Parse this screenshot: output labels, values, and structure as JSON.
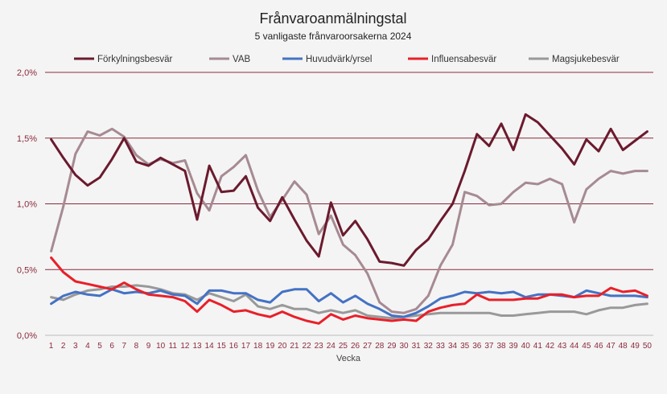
{
  "chart_data": {
    "type": "line",
    "title": "Frånvaroanmälningstal",
    "subtitle": "5 vanligaste frånvaroorsakerna 2024",
    "xlabel": "Vecka",
    "ylabel": "",
    "ylim": [
      0,
      2.0
    ],
    "ytick_values": [
      0,
      0.5,
      1.0,
      1.5,
      2.0
    ],
    "ytick_labels": [
      "0,0%",
      "0,5%",
      "1,0%",
      "1,5%",
      "2,0%"
    ],
    "grid": true,
    "legend_position": "top",
    "x": [
      1,
      2,
      3,
      4,
      5,
      6,
      7,
      8,
      9,
      10,
      11,
      12,
      13,
      14,
      15,
      16,
      17,
      18,
      19,
      20,
      21,
      22,
      23,
      24,
      25,
      26,
      27,
      28,
      29,
      30,
      31,
      32,
      33,
      34,
      35,
      36,
      37,
      38,
      39,
      40,
      41,
      42,
      43,
      44,
      45,
      46,
      47,
      48,
      49,
      50
    ],
    "series": [
      {
        "name": "Förkylningsbesvär",
        "color": "#6b1a2e",
        "values": [
          1.49,
          1.35,
          1.22,
          1.14,
          1.2,
          1.34,
          1.5,
          1.32,
          1.29,
          1.35,
          1.3,
          1.25,
          0.88,
          1.29,
          1.09,
          1.1,
          1.21,
          0.97,
          0.87,
          1.05,
          0.88,
          0.72,
          0.6,
          1.01,
          0.76,
          0.87,
          0.73,
          0.56,
          0.55,
          0.53,
          0.65,
          0.73,
          0.87,
          1.0,
          1.25,
          1.53,
          1.44,
          1.61,
          1.41,
          1.68,
          1.62,
          1.52,
          1.42,
          1.3,
          1.49,
          1.4,
          1.57,
          1.41,
          1.48,
          1.55
        ]
      },
      {
        "name": "VAB",
        "color": "#a68a92",
        "values": [
          0.64,
          0.98,
          1.38,
          1.55,
          1.52,
          1.57,
          1.51,
          1.37,
          1.3,
          1.34,
          1.31,
          1.33,
          1.08,
          0.95,
          1.21,
          1.28,
          1.37,
          1.1,
          0.9,
          1.03,
          1.17,
          1.07,
          0.77,
          0.91,
          0.69,
          0.61,
          0.47,
          0.25,
          0.18,
          0.17,
          0.2,
          0.3,
          0.53,
          0.69,
          1.09,
          1.06,
          0.99,
          1.0,
          1.09,
          1.16,
          1.15,
          1.19,
          1.15,
          0.86,
          1.11,
          1.19,
          1.25,
          1.23,
          1.25,
          1.25
        ]
      },
      {
        "name": "Huvudvärk/yrsel",
        "color": "#4472c4",
        "values": [
          0.24,
          0.3,
          0.33,
          0.31,
          0.3,
          0.35,
          0.32,
          0.33,
          0.32,
          0.34,
          0.31,
          0.3,
          0.24,
          0.34,
          0.34,
          0.32,
          0.32,
          0.27,
          0.25,
          0.33,
          0.35,
          0.35,
          0.26,
          0.32,
          0.25,
          0.3,
          0.24,
          0.2,
          0.15,
          0.14,
          0.17,
          0.22,
          0.28,
          0.3,
          0.33,
          0.32,
          0.33,
          0.32,
          0.33,
          0.29,
          0.31,
          0.31,
          0.3,
          0.29,
          0.34,
          0.32,
          0.3,
          0.3,
          0.3,
          0.29
        ]
      },
      {
        "name": "Influensabesvär",
        "color": "#e8202a",
        "values": [
          0.59,
          0.48,
          0.41,
          0.39,
          0.37,
          0.35,
          0.4,
          0.35,
          0.31,
          0.3,
          0.29,
          0.26,
          0.18,
          0.27,
          0.23,
          0.18,
          0.19,
          0.16,
          0.14,
          0.18,
          0.14,
          0.11,
          0.09,
          0.16,
          0.12,
          0.15,
          0.13,
          0.12,
          0.11,
          0.12,
          0.11,
          0.18,
          0.21,
          0.23,
          0.24,
          0.31,
          0.27,
          0.27,
          0.27,
          0.28,
          0.28,
          0.31,
          0.31,
          0.29,
          0.3,
          0.3,
          0.36,
          0.33,
          0.34,
          0.3
        ]
      },
      {
        "name": "Magsjukebesvär",
        "color": "#999999",
        "values": [
          0.29,
          0.27,
          0.31,
          0.34,
          0.35,
          0.37,
          0.37,
          0.38,
          0.37,
          0.35,
          0.32,
          0.31,
          0.27,
          0.32,
          0.29,
          0.26,
          0.31,
          0.22,
          0.2,
          0.23,
          0.2,
          0.2,
          0.17,
          0.19,
          0.17,
          0.19,
          0.15,
          0.14,
          0.13,
          0.14,
          0.15,
          0.16,
          0.17,
          0.17,
          0.17,
          0.17,
          0.17,
          0.15,
          0.15,
          0.16,
          0.17,
          0.18,
          0.18,
          0.18,
          0.16,
          0.19,
          0.21,
          0.21,
          0.23,
          0.24
        ]
      }
    ]
  }
}
